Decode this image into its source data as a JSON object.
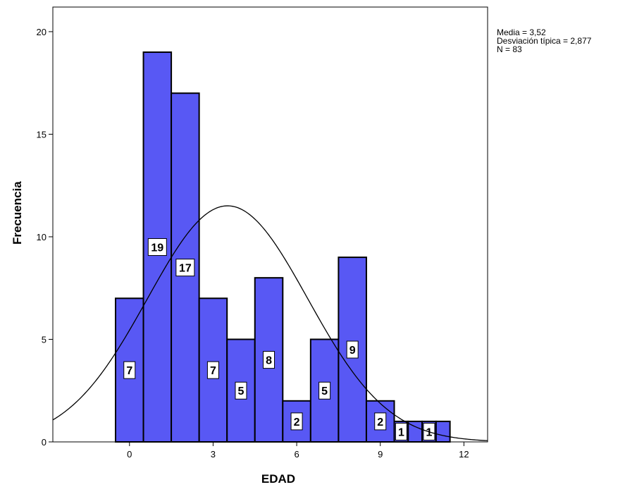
{
  "chart_data": {
    "type": "bar",
    "subtype": "histogram",
    "xlabel": "EDAD",
    "ylabel": "Frecuencia",
    "xlim": [
      -2.75,
      12.85
    ],
    "ylim": [
      0,
      21.2
    ],
    "x_ticks": [
      "0",
      "3",
      "6",
      "9",
      "12"
    ],
    "x_tick_values": [
      0,
      3,
      6,
      9,
      12
    ],
    "y_ticks": [
      "0",
      "5",
      "10",
      "15",
      "20"
    ],
    "y_tick_values": [
      0,
      5,
      10,
      15,
      20
    ],
    "bins": [
      {
        "start": -0.5,
        "end": 0.5,
        "count": 7,
        "label": "7"
      },
      {
        "start": 0.5,
        "end": 1.5,
        "count": 19,
        "label": "19"
      },
      {
        "start": 1.5,
        "end": 2.5,
        "count": 17,
        "label": "17"
      },
      {
        "start": 2.5,
        "end": 3.5,
        "count": 7,
        "label": "7"
      },
      {
        "start": 3.5,
        "end": 4.5,
        "count": 5,
        "label": "5"
      },
      {
        "start": 4.5,
        "end": 5.5,
        "count": 8,
        "label": "8"
      },
      {
        "start": 5.5,
        "end": 6.5,
        "count": 2,
        "label": "2"
      },
      {
        "start": 6.5,
        "end": 7.5,
        "count": 5,
        "label": "5"
      },
      {
        "start": 7.5,
        "end": 8.5,
        "count": 9,
        "label": "9"
      },
      {
        "start": 8.5,
        "end": 9.5,
        "count": 2,
        "label": "2"
      },
      {
        "start": 9.5,
        "end": 10.0,
        "count": 1,
        "label": "1"
      },
      {
        "start": 10.0,
        "end": 10.5,
        "count": 1,
        "label": ""
      },
      {
        "start": 10.5,
        "end": 11.0,
        "count": 1,
        "label": "1"
      },
      {
        "start": 11.0,
        "end": 11.5,
        "count": 1,
        "label": ""
      }
    ],
    "normal_curve": {
      "mean": 3.52,
      "sd": 2.877,
      "n": 83,
      "bin_width": 1
    },
    "bar_color": "#5858f4",
    "grid": false
  },
  "stats": {
    "mean_text": "Media = 3,52",
    "sd_text": "Desviación típica = 2,877",
    "n_text": "N = 83"
  }
}
